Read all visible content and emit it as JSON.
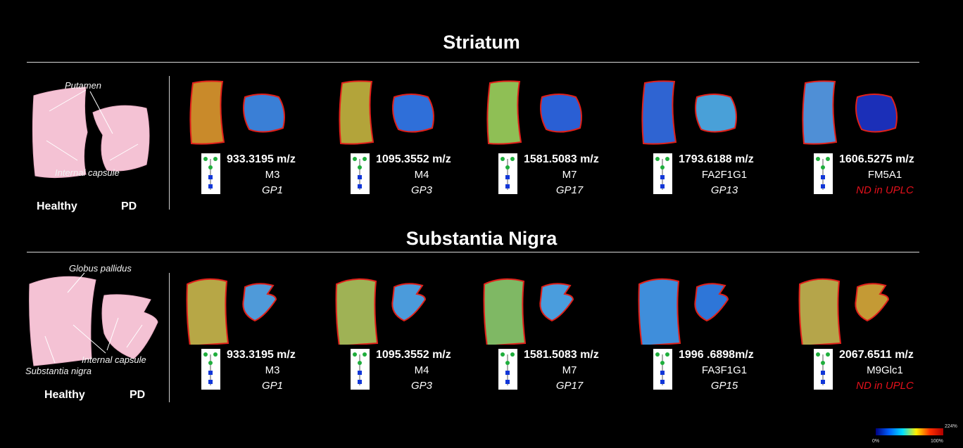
{
  "sections": [
    {
      "title": "Striatum",
      "annotations": [
        "Putamen",
        "Internal capsule"
      ],
      "conditions": [
        "Healthy",
        "PD"
      ],
      "panels": [
        {
          "mz": "933.3195 m/z",
          "name": "M3",
          "gp": "GP1",
          "gp_red": false
        },
        {
          "mz": "1095.3552 m/z",
          "name": "M4",
          "gp": "GP3",
          "gp_red": false
        },
        {
          "mz": "1581.5083 m/z",
          "name": "M7",
          "gp": "GP17",
          "gp_red": false
        },
        {
          "mz": "1793.6188 m/z",
          "name": "FA2F1G1",
          "gp": "GP13",
          "gp_red": false
        },
        {
          "mz": "1606.5275 m/z",
          "name": "FM5A1",
          "gp": "ND in UPLC",
          "gp_red": true
        }
      ]
    },
    {
      "title": "Substantia Nigra",
      "annotations": [
        "Globus pallidus",
        "Internal capsule",
        "Substantia nigra"
      ],
      "conditions": [
        "Healthy",
        "PD"
      ],
      "panels": [
        {
          "mz": "933.3195 m/z",
          "name": "M3",
          "gp": "GP1",
          "gp_red": false
        },
        {
          "mz": "1095.3552 m/z",
          "name": "M4",
          "gp": "GP3",
          "gp_red": false
        },
        {
          "mz": "1581.5083 m/z",
          "name": "M7",
          "gp": "GP17",
          "gp_red": false
        },
        {
          "mz": "1996 .6898m/z",
          "name": "FA3F1G1",
          "gp": "GP15",
          "gp_red": false
        },
        {
          "mz": "2067.6511 m/z",
          "name": "M9Glc1",
          "gp": "ND in UPLC",
          "gp_red": true
        }
      ]
    }
  ],
  "heatmap_fill": {
    "striatum": [
      [
        "#c98a2a",
        "#3a7fd6"
      ],
      [
        "#b3a43a",
        "#2f6fd9"
      ],
      [
        "#8fbf55",
        "#2a5fd4"
      ],
      [
        "#2f64d2",
        "#49a0d8"
      ],
      [
        "#4f8fd6",
        "#1b2fb8"
      ]
    ],
    "nigra": [
      [
        "#b7a746",
        "#4f9ad9"
      ],
      [
        "#9fb255",
        "#4b9bdb"
      ],
      [
        "#7fb864",
        "#4a9ddd"
      ],
      [
        "#3f8edb",
        "#2e76d8"
      ],
      [
        "#b5a54a",
        "#c49a35"
      ]
    ]
  },
  "colorbar": {
    "min_label": "0%",
    "max_label": "100%",
    "top_label": "224%",
    "colors": [
      "#000080",
      "#0060ff",
      "#00e0ff",
      "#fff000",
      "#ff3000",
      "#b00000"
    ]
  }
}
